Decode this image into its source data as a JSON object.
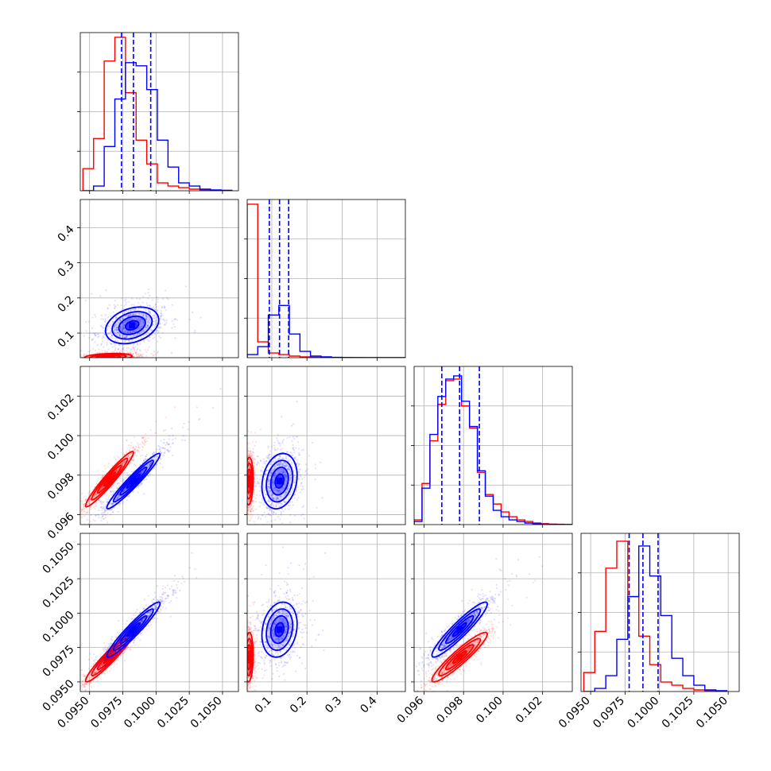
{
  "colors": {
    "series_a": "#ff0000",
    "series_b": "#0000ff",
    "grid": "#b0b0b0",
    "axes": "#000000"
  },
  "chart_data": {
    "type": "corner",
    "title": "",
    "grid": true,
    "series": [
      {
        "color": "#ff0000",
        "histograms": [
          {
            "bins": [
              0.0945,
              0.0953,
              0.0961,
              0.0969,
              0.0977,
              0.0985,
              0.0993,
              0.1001,
              0.1009,
              0.1017,
              0.1025,
              0.1033,
              0.1041,
              0.1049,
              0.1057
            ],
            "heights": [
              0.14,
              0.33,
              0.82,
              0.97,
              0.62,
              0.32,
              0.17,
              0.05,
              0.03,
              0.02,
              0.01,
              0.005,
              0.003,
              0.002
            ]
          },
          {
            "bins": [
              0.03,
              0.06,
              0.09,
              0.12,
              0.15,
              0.18,
              0.21,
              0.24,
              0.27,
              0.3,
              0.33,
              0.36,
              0.39,
              0.42,
              0.45,
              0.48
            ],
            "heights": [
              0.97,
              0.1,
              0.03,
              0.02,
              0.01,
              0.005,
              0.003,
              0.002,
              0.001,
              0.001,
              0.001,
              0,
              0,
              0,
              0
            ]
          },
          {
            "bins": [
              0.0955,
              0.0959,
              0.0963,
              0.0967,
              0.0971,
              0.0975,
              0.0979,
              0.0983,
              0.0987,
              0.0991,
              0.0995,
              0.0999,
              0.1003,
              0.1007,
              0.1011,
              0.1015,
              0.1019,
              0.1023,
              0.1027,
              0.1031,
              0.1035
            ],
            "heights": [
              0.03,
              0.26,
              0.53,
              0.76,
              0.91,
              0.92,
              0.75,
              0.61,
              0.33,
              0.19,
              0.13,
              0.08,
              0.05,
              0.03,
              0.02,
              0.01,
              0.006,
              0.003,
              0.002,
              0.001
            ]
          },
          {
            "bins": [
              0.0945,
              0.0953,
              0.0961,
              0.0969,
              0.0977,
              0.0985,
              0.0993,
              0.1001,
              0.1009,
              0.1017,
              0.1025,
              0.1033,
              0.1041,
              0.1049
            ],
            "heights": [
              0.12,
              0.38,
              0.78,
              0.95,
              0.6,
              0.35,
              0.17,
              0.06,
              0.04,
              0.02,
              0.01,
              0.005,
              0.002
            ]
          }
        ],
        "contours": [
          {
            "row": 1,
            "col": 0,
            "center": [
              0.0964,
              0.032
            ],
            "spread": [
              0.0009,
              0.005
            ],
            "corr": 0.25
          },
          {
            "row": 2,
            "col": 0,
            "center": [
              0.0965,
              0.0978
            ],
            "spread": [
              0.0009,
              0.0007
            ],
            "corr": 0.96
          },
          {
            "row": 2,
            "col": 1,
            "center": [
              0.035,
              0.0977
            ],
            "spread": [
              0.006,
              0.0006
            ],
            "corr": 0.1
          },
          {
            "row": 3,
            "col": 0,
            "center": [
              0.0965,
              0.0968
            ],
            "spread": [
              0.0009,
              0.0009
            ],
            "corr": 0.95
          },
          {
            "row": 3,
            "col": 1,
            "center": [
              0.035,
              0.0968
            ],
            "spread": [
              0.006,
              0.0009
            ],
            "corr": 0.1
          },
          {
            "row": 3,
            "col": 2,
            "center": [
              0.0978,
              0.0968
            ],
            "spread": [
              0.0007,
              0.0009
            ],
            "corr": 0.93
          }
        ]
      },
      {
        "color": "#0000ff",
        "quantiles": [
          [
            0.0974,
            0.0983,
            0.0996
          ],
          [
            0.093,
            0.122,
            0.148
          ],
          [
            0.0969,
            0.0978,
            0.0988
          ],
          [
            0.0978,
            0.0988,
            0.0999
          ]
        ],
        "histograms": [
          {
            "bins": [
              0.0945,
              0.0953,
              0.0961,
              0.0969,
              0.0977,
              0.0985,
              0.0993,
              0.1001,
              0.1009,
              0.1017,
              0.1025,
              0.1033,
              0.1041,
              0.1049,
              0.1057
            ],
            "heights": [
              0.0,
              0.03,
              0.28,
              0.58,
              0.81,
              0.79,
              0.64,
              0.32,
              0.15,
              0.05,
              0.03,
              0.01,
              0.005,
              0.003
            ]
          },
          {
            "bins": [
              0.03,
              0.06,
              0.09,
              0.12,
              0.15,
              0.18,
              0.21,
              0.24,
              0.27,
              0.3,
              0.33,
              0.36,
              0.39,
              0.42,
              0.45,
              0.48
            ],
            "heights": [
              0.02,
              0.07,
              0.27,
              0.33,
              0.15,
              0.04,
              0.01,
              0.005,
              0.002,
              0.001,
              0,
              0,
              0,
              0,
              0
            ]
          },
          {
            "bins": [
              0.0955,
              0.0959,
              0.0963,
              0.0967,
              0.0971,
              0.0975,
              0.0979,
              0.0983,
              0.0987,
              0.0991,
              0.0995,
              0.0999,
              0.1003,
              0.1007,
              0.1011,
              0.1015,
              0.1019,
              0.1023,
              0.1027,
              0.1031,
              0.1035
            ],
            "heights": [
              0.02,
              0.23,
              0.57,
              0.81,
              0.92,
              0.94,
              0.78,
              0.62,
              0.34,
              0.18,
              0.09,
              0.05,
              0.03,
              0.02,
              0.01,
              0.005,
              0.003,
              0.002,
              0.001,
              0
            ]
          },
          {
            "bins": [
              0.0945,
              0.0953,
              0.0961,
              0.0969,
              0.0977,
              0.0985,
              0.0993,
              0.1001,
              0.1009,
              0.1017,
              0.1025,
              0.1033,
              0.1041,
              0.1049
            ],
            "heights": [
              0.0,
              0.02,
              0.1,
              0.33,
              0.6,
              0.92,
              0.73,
              0.48,
              0.21,
              0.1,
              0.04,
              0.01,
              0.005
            ]
          }
        ],
        "contours": [
          {
            "row": 1,
            "col": 0,
            "center": [
              0.0982,
              0.122
            ],
            "spread": [
              0.001,
              0.026
            ],
            "corr": 0.3
          },
          {
            "row": 2,
            "col": 0,
            "center": [
              0.0983,
              0.0977
            ],
            "spread": [
              0.001,
              0.0007
            ],
            "corr": 0.96
          },
          {
            "row": 2,
            "col": 1,
            "center": [
              0.122,
              0.0977
            ],
            "spread": [
              0.025,
              0.0007
            ],
            "corr": 0.2
          },
          {
            "row": 3,
            "col": 0,
            "center": [
              0.0983,
              0.0988
            ],
            "spread": [
              0.001,
              0.001
            ],
            "corr": 0.95
          },
          {
            "row": 3,
            "col": 1,
            "center": [
              0.122,
              0.0988
            ],
            "spread": [
              0.025,
              0.001
            ],
            "corr": 0.2
          },
          {
            "row": 3,
            "col": 2,
            "center": [
              0.0978,
              0.0988
            ],
            "spread": [
              0.0007,
              0.001
            ],
            "corr": 0.93
          }
        ]
      }
    ],
    "axes": [
      {
        "lim": [
          0.0943,
          0.1062
        ],
        "ticks": [
          0.095,
          0.0975,
          0.1,
          0.1025,
          0.105
        ],
        "tick_labels": [
          "0.0950",
          "0.0975",
          "0.1000",
          "0.1025",
          "0.1050"
        ]
      },
      {
        "lim": [
          0.03,
          0.48
        ],
        "ticks": [
          0.1,
          0.2,
          0.3,
          0.4
        ],
        "tick_labels": [
          "0.1",
          "0.2",
          "0.3",
          "0.4"
        ]
      },
      {
        "lim": [
          0.0955,
          0.1035
        ],
        "ticks": [
          0.096,
          0.098,
          0.1,
          0.102
        ],
        "tick_labels": [
          "0.096",
          "0.098",
          "0.100",
          "0.102"
        ]
      },
      {
        "lim": [
          0.0943,
          0.1058
        ],
        "ticks": [
          0.095,
          0.0975,
          0.1,
          0.1025,
          0.105
        ],
        "tick_labels": [
          "0.0950",
          "0.0975",
          "0.1000",
          "0.1025",
          "0.1050"
        ]
      }
    ],
    "diag_yticks_fraction": [
      0.25,
      0.5,
      0.75
    ]
  }
}
